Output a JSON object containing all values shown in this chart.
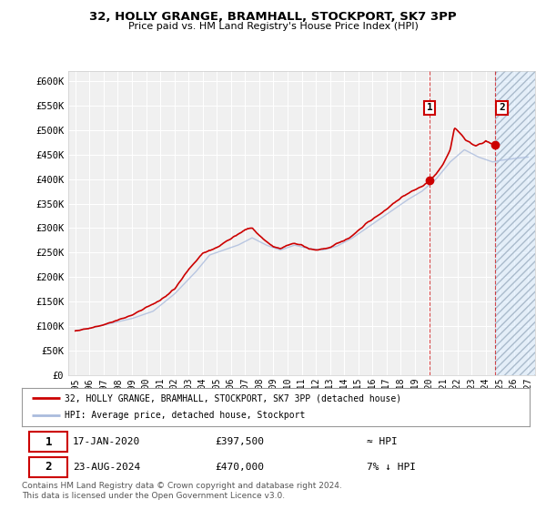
{
  "title": "32, HOLLY GRANGE, BRAMHALL, STOCKPORT, SK7 3PP",
  "subtitle": "Price paid vs. HM Land Registry's House Price Index (HPI)",
  "ylim": [
    0,
    620000
  ],
  "yticks": [
    0,
    50000,
    100000,
    150000,
    200000,
    250000,
    300000,
    350000,
    400000,
    450000,
    500000,
    550000,
    600000
  ],
  "ytick_labels": [
    "£0",
    "£50K",
    "£100K",
    "£150K",
    "£200K",
    "£250K",
    "£300K",
    "£350K",
    "£400K",
    "£450K",
    "£500K",
    "£550K",
    "£600K"
  ],
  "xlim_start": 1994.5,
  "xlim_end": 2027.5,
  "background_color": "#ffffff",
  "plot_bg_color": "#f0f0f0",
  "grid_color": "#ffffff",
  "line_color_property": "#cc0000",
  "line_color_hpi": "#aabbdd",
  "legend_property": "32, HOLLY GRANGE, BRAMHALL, STOCKPORT, SK7 3PP (detached house)",
  "legend_hpi": "HPI: Average price, detached house, Stockport",
  "transaction1_date": "17-JAN-2020",
  "transaction1_price": "£397,500",
  "transaction1_note": "≈ HPI",
  "transaction2_date": "23-AUG-2024",
  "transaction2_price": "£470,000",
  "transaction2_note": "7% ↓ HPI",
  "footer": "Contains HM Land Registry data © Crown copyright and database right 2024.\nThis data is licensed under the Open Government Licence v3.0.",
  "tx1_x": 2020.05,
  "tx1_y": 397500,
  "tx2_x": 2024.65,
  "tx2_y": 470000,
  "future_start": 2024.65
}
